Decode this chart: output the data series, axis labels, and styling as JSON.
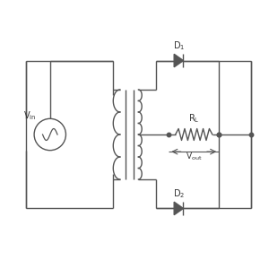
{
  "background": "#ffffff",
  "line_color": "#555555",
  "line_width": 1.0,
  "figsize": [
    3.0,
    3.0
  ],
  "dpi": 100,
  "xlim": [
    0,
    10
  ],
  "ylim": [
    0,
    10
  ]
}
